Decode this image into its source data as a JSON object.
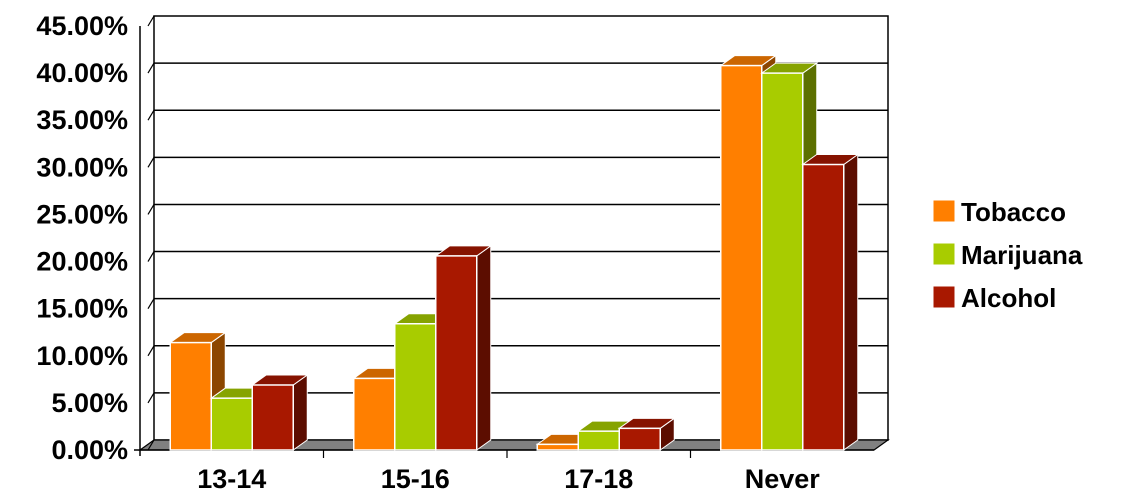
{
  "chart_data": {
    "type": "bar",
    "categories": [
      "13-14",
      "15-16",
      "17-18",
      "Never"
    ],
    "series": [
      {
        "name": "Tobacco",
        "values": [
          11.4,
          7.6,
          0.6,
          40.8
        ],
        "color": "#ff7f00"
      },
      {
        "name": "Marijuana",
        "values": [
          5.5,
          13.4,
          2.0,
          40.0
        ],
        "color": "#a8cc00"
      },
      {
        "name": "Alcohol",
        "values": [
          6.9,
          20.6,
          2.3,
          30.3
        ],
        "color": "#a81800"
      }
    ],
    "y_ticks": [
      "0.00%",
      "5.00%",
      "10.00%",
      "15.00%",
      "20.00%",
      "25.00%",
      "30.00%",
      "35.00%",
      "40.00%",
      "45.00%"
    ],
    "ylim": [
      0,
      45
    ],
    "grid": true,
    "legend_position": "right",
    "style": "3d-bar"
  }
}
